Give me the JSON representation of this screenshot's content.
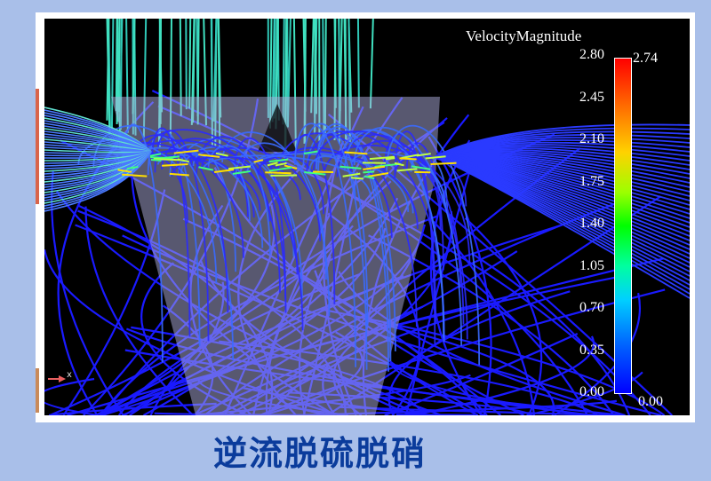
{
  "legend": {
    "title": "VelocityMagnitude",
    "ticks": [
      "2.80",
      "2.45",
      "2.10",
      "1.75",
      "1.40",
      "1.05",
      "0.70",
      "0.35",
      "0.00"
    ],
    "range_max": "2.74",
    "range_min": "0.00",
    "colormap": [
      "#0000ff",
      "#00d0ff",
      "#00ff00",
      "#ffd200",
      "#ff0000"
    ]
  },
  "axis_label": "x",
  "caption": "逆流脱硫脱硝",
  "colors": {
    "background": "#a9bfe9",
    "caption": "#0b3c9c",
    "streamline_low": "#1a1aff",
    "streamline_mid": "#40e0c0"
  }
}
